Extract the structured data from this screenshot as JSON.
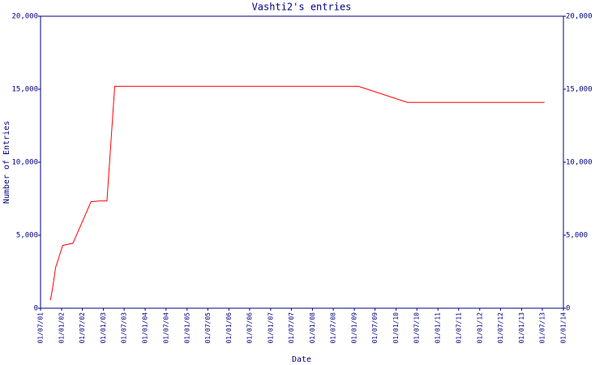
{
  "chart_data": {
    "type": "line",
    "title": "Vashti2's entries",
    "x_label": "Date",
    "y_label": "Number of Entries",
    "x": [
      "2001-09-25",
      "2001-10-15",
      "2001-11-10",
      "2001-12-01",
      "2002-01-10",
      "2002-04-10",
      "2002-09-15",
      "2002-11-25",
      "2003-02-01",
      "2003-04-10",
      "2009-02-05",
      "2010-04-10",
      "2013-07-20"
    ],
    "series": [
      {
        "name": "Entries",
        "color": "#ff0000",
        "values": [
          550,
          1400,
          2800,
          3300,
          4300,
          4450,
          7300,
          7350,
          7350,
          15200,
          15200,
          14100,
          14100
        ]
      }
    ],
    "xlim": [
      "2001-07-01",
      "2014-01-01"
    ],
    "xticks": [
      {
        "value": "2001-07-01",
        "label": "01/07/01"
      },
      {
        "value": "2002-01-01",
        "label": "01/01/02"
      },
      {
        "value": "2002-07-01",
        "label": "01/07/02"
      },
      {
        "value": "2003-01-01",
        "label": "01/01/03"
      },
      {
        "value": "2003-07-01",
        "label": "01/07/03"
      },
      {
        "value": "2004-01-01",
        "label": "01/01/04"
      },
      {
        "value": "2004-07-01",
        "label": "01/07/04"
      },
      {
        "value": "2005-01-01",
        "label": "01/01/05"
      },
      {
        "value": "2005-07-01",
        "label": "01/07/05"
      },
      {
        "value": "2006-01-01",
        "label": "01/01/06"
      },
      {
        "value": "2006-07-01",
        "label": "01/07/06"
      },
      {
        "value": "2007-01-01",
        "label": "01/01/07"
      },
      {
        "value": "2007-07-01",
        "label": "01/07/07"
      },
      {
        "value": "2008-01-01",
        "label": "01/01/08"
      },
      {
        "value": "2008-07-01",
        "label": "01/07/08"
      },
      {
        "value": "2009-01-01",
        "label": "01/01/09"
      },
      {
        "value": "2009-07-01",
        "label": "01/07/09"
      },
      {
        "value": "2010-01-01",
        "label": "01/01/10"
      },
      {
        "value": "2010-07-01",
        "label": "01/07/10"
      },
      {
        "value": "2011-01-01",
        "label": "01/01/11"
      },
      {
        "value": "2011-07-01",
        "label": "01/07/11"
      },
      {
        "value": "2012-01-01",
        "label": "01/01/12"
      },
      {
        "value": "2012-07-01",
        "label": "01/07/12"
      },
      {
        "value": "2013-01-01",
        "label": "01/01/13"
      },
      {
        "value": "2013-07-01",
        "label": "01/07/13"
      },
      {
        "value": "2014-01-01",
        "label": "01/01/14"
      }
    ],
    "ylim": [
      0,
      20000
    ],
    "yticks": [
      0,
      {
        "value": 5000,
        "label": "5,000"
      },
      {
        "value": 10000,
        "label": "10,000"
      },
      {
        "value": 15000,
        "label": "15,000"
      },
      {
        "value": 20000,
        "label": "20,000"
      }
    ],
    "right_axis": true
  }
}
